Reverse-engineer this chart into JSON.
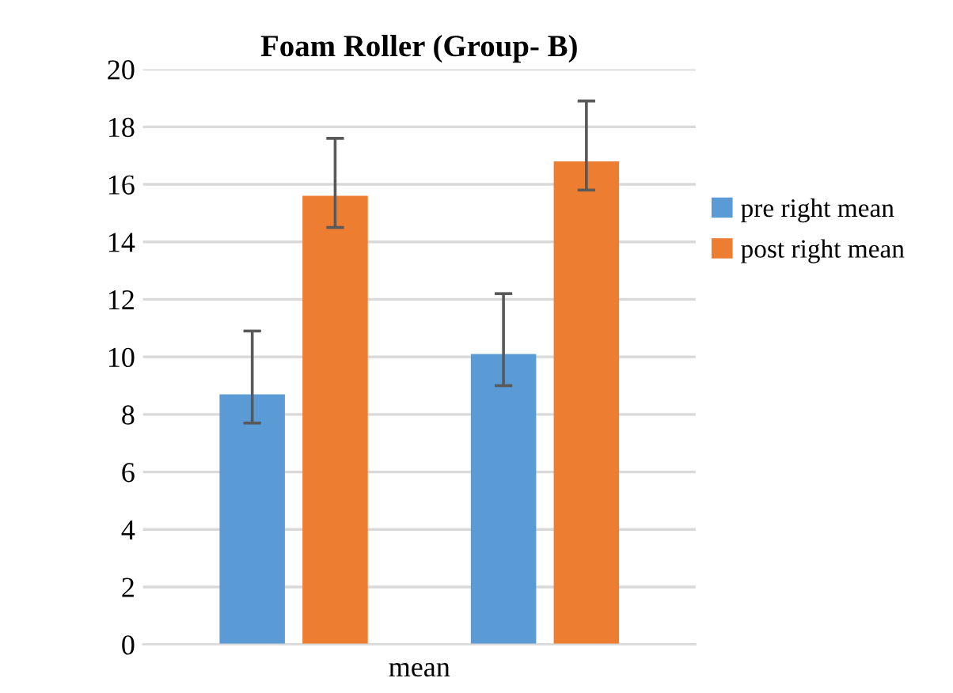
{
  "chart_data": {
    "type": "bar",
    "title": "Foam Roller (Group- B)",
    "xlabel": "mean",
    "categories": [
      null,
      null
    ],
    "series": [
      {
        "name": "pre right mean",
        "color": "#5b9bd5",
        "values": [
          8.7,
          10.1
        ],
        "errors": [
          [
            7.7,
            10.9
          ],
          [
            9.0,
            12.2
          ]
        ]
      },
      {
        "name": "post right mean",
        "color": "#ed7d31",
        "values": [
          15.6,
          16.8
        ],
        "errors": [
          [
            14.5,
            17.6
          ],
          [
            15.8,
            18.9
          ]
        ]
      }
    ],
    "ylim": [
      0,
      20
    ],
    "yticks": [
      0,
      2,
      4,
      6,
      8,
      10,
      12,
      14,
      16,
      18,
      20
    ],
    "grid": "y",
    "legend": "right"
  }
}
